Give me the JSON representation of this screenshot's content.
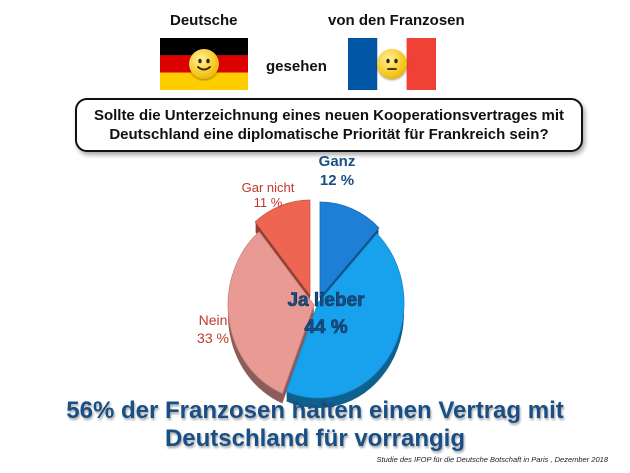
{
  "header": {
    "left_title": "Deutsche",
    "right_title": "von den Franzosen",
    "middle": "gesehen"
  },
  "flags": {
    "germany": {
      "stripes": [
        "#000000",
        "#dd0000",
        "#ffce00"
      ],
      "icon": "smiley-face-icon"
    },
    "france": {
      "stripes": [
        "#0055a4",
        "#ffffff",
        "#ef4135"
      ],
      "icon": "neutral-face-icon"
    }
  },
  "question": {
    "line1": "Sollte die Unterzeichnung eines neuen Kooperationsvertrages mit",
    "line2": "Deutschland eine diplomatische Priorität für Frankreich sein?"
  },
  "chart_data": {
    "type": "pie",
    "title": "",
    "slices": [
      {
        "label": "Ganz",
        "value": 12,
        "value_label": "12 %",
        "color": "#1e7fd6"
      },
      {
        "label": "Ja lieber",
        "value": 44,
        "value_label": "44 %",
        "color": "#18a2ee"
      },
      {
        "label": "Nein",
        "value": 33,
        "value_label": "33 %",
        "color": "#ea9a94"
      },
      {
        "label": "Gar nicht",
        "value": 11,
        "value_label": "11 %",
        "color": "#ee6652"
      }
    ]
  },
  "headline": {
    "line1": "56% der Franzosen halten einen Vertrag mit",
    "line2": "Deutschland für vorrangig"
  },
  "source": "Studie des IFOP für die Deutsche Botschaft in Paris , Dezember 2018"
}
